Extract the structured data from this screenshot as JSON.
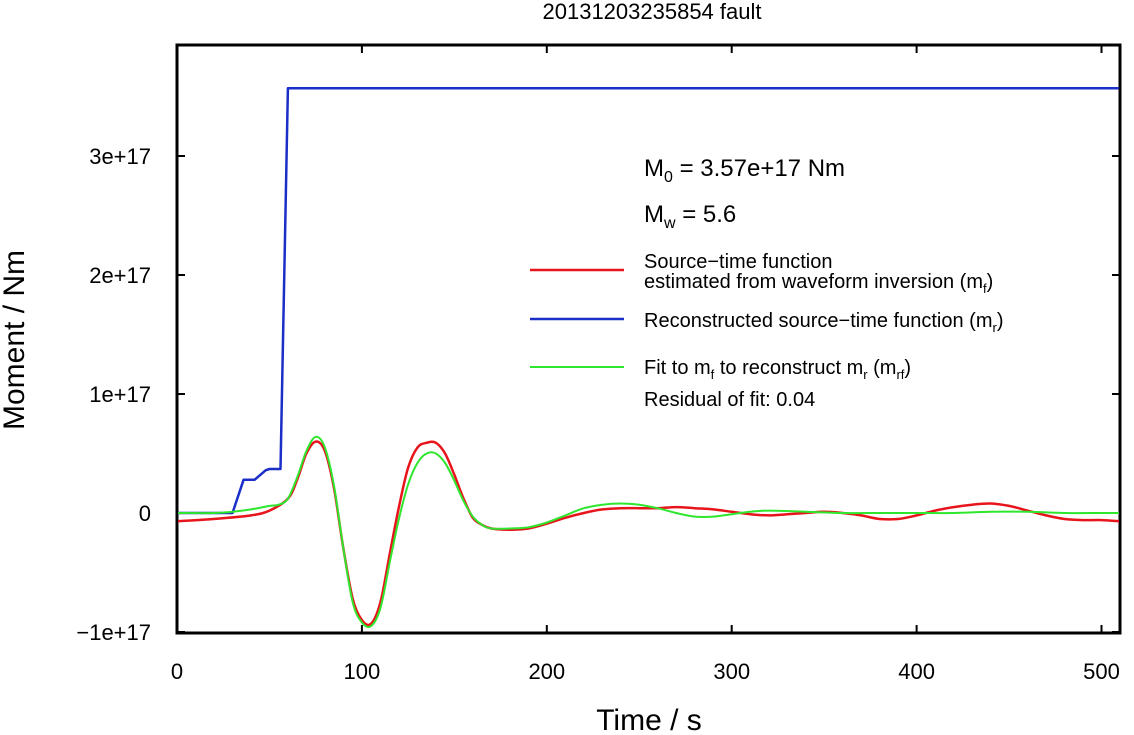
{
  "chart_data": {
    "type": "line",
    "title": "20131203235854 fault",
    "xlabel": "Time / s",
    "ylabel": "Moment / Nm",
    "xlim": [
      0,
      510
    ],
    "ylim": [
      -1e+17,
      3.9e+17
    ],
    "x_ticks": [
      0,
      100,
      200,
      300,
      400,
      500
    ],
    "x_tick_labels": [
      "0",
      "100",
      "200",
      "300",
      "400",
      "500"
    ],
    "y_ticks": [
      -1e+17,
      0,
      1e+17,
      2e+17,
      3e+17
    ],
    "y_tick_labels": [
      "−1e+17",
      "0",
      "1e+17",
      "2e+17",
      "3e+17"
    ],
    "grid": false,
    "annotations": {
      "m0": {
        "symbol": "M",
        "sub": "0",
        "text": " = 3.57e+17 Nm"
      },
      "mw": {
        "symbol": "M",
        "sub": "w",
        "text": " = 5.6"
      },
      "residual": "Residual of fit: 0.04"
    },
    "legend": {
      "placement": "right",
      "entries": [
        {
          "key": "red",
          "line1": "Source−time function",
          "line2": "estimated from waveform inversion (m",
          "sub": "f",
          "close": ")",
          "color": "#e8141c"
        },
        {
          "key": "blue",
          "line1": "Reconstructed source−time function (m",
          "sub": "r",
          "close": ")",
          "color": "#1a2ec8"
        },
        {
          "key": "green",
          "line1": "Fit to m",
          "sub1": "f",
          "mid": " to reconstruct m",
          "sub2": "r",
          "mid2": " (m",
          "sub3": "rf",
          "close": ")",
          "color": "#2ee62e"
        }
      ]
    },
    "series": [
      {
        "key": "red",
        "color": "#e8141c",
        "x": [
          0,
          20,
          40,
          50,
          60,
          65,
          70,
          75,
          80,
          85,
          90,
          95,
          100,
          105,
          110,
          115,
          120,
          125,
          130,
          135,
          140,
          145,
          150,
          155,
          160,
          165,
          170,
          180,
          190,
          200,
          210,
          220,
          230,
          240,
          250,
          260,
          270,
          280,
          290,
          300,
          310,
          320,
          330,
          340,
          350,
          360,
          370,
          380,
          390,
          400,
          410,
          420,
          430,
          440,
          450,
          460,
          470,
          480,
          490,
          500,
          510
        ],
        "y": [
          -7000000000000000.0,
          -5000000000000000.0,
          -2000000000000000.0,
          2000000000000000.0,
          1.2e+16,
          2.8e+16,
          5e+16,
          6e+16,
          5.2e+16,
          2e+16,
          -3e+16,
          -7.2e+16,
          -9e+16,
          -9.3e+16,
          -7.5e+16,
          -3.5e+16,
          5000000000000000.0,
          3.8e+16,
          5.5e+16,
          5.9e+16,
          5.9e+16,
          5e+16,
          3.2e+16,
          1.2e+16,
          -4000000000000000.0,
          -1e+16,
          -1.3e+16,
          -1.4e+16,
          -1.3e+16,
          -9000000000000000.0,
          -4000000000000000.0,
          0.0,
          3000000000000000.0,
          4000000000000000.0,
          4000000000000000.0,
          4000000000000000.0,
          5000000000000000.0,
          4000000000000000.0,
          3000000000000000.0,
          1000000000000000.0,
          -1000000000000000.0,
          -2000000000000000.0,
          -1000000000000000.0,
          0.0,
          1000000000000000.0,
          0.0,
          -2000000000000000.0,
          -5000000000000000.0,
          -5000000000000000.0,
          -2000000000000000.0,
          2000000000000000.0,
          5000000000000000.0,
          7000000000000000.0,
          8000000000000000.0,
          6000000000000000.0,
          2000000000000000.0,
          -2000000000000000.0,
          -5000000000000000.0,
          -6000000000000000.0,
          -6000000000000000.0,
          -7000000000000000.0
        ]
      },
      {
        "key": "blue",
        "color": "#1a2ec8",
        "x": [
          0,
          30,
          36,
          40,
          42,
          48,
          50,
          55,
          56,
          60,
          510
        ],
        "y": [
          0,
          0,
          2.8e+16,
          2.8e+16,
          2.8e+16,
          3.6e+16,
          3.7e+16,
          3.7e+16,
          3.7e+16,
          3.57e+17,
          3.57e+17
        ]
      },
      {
        "key": "green",
        "color": "#2ee62e",
        "x": [
          0,
          20,
          30,
          40,
          50,
          55,
          60,
          65,
          70,
          75,
          80,
          85,
          90,
          95,
          100,
          105,
          110,
          115,
          120,
          125,
          130,
          135,
          140,
          145,
          150,
          155,
          160,
          165,
          170,
          180,
          190,
          200,
          210,
          220,
          230,
          240,
          250,
          260,
          270,
          280,
          290,
          300,
          310,
          320,
          340,
          360,
          380,
          400,
          420,
          440,
          460,
          480,
          500,
          510
        ],
        "y": [
          0,
          0,
          1000000000000000.0,
          3000000000000000.0,
          6000000000000000.0,
          7000000000000000.0,
          1.2e+16,
          3e+16,
          5.2e+16,
          6.4e+16,
          5.5e+16,
          2.2e+16,
          -3e+16,
          -7.5e+16,
          -9.2e+16,
          -9.5e+16,
          -8e+16,
          -4.2e+16,
          -5000000000000000.0,
          2.4e+16,
          4.2e+16,
          5e+16,
          5e+16,
          4.2e+16,
          2.7e+16,
          1e+16,
          -3000000000000000.0,
          -1e+16,
          -1.3e+16,
          -1.3e+16,
          -1.2e+16,
          -8000000000000000.0,
          -2000000000000000.0,
          4000000000000000.0,
          7000000000000000.0,
          8000000000000000.0,
          7000000000000000.0,
          4000000000000000.0,
          0.0,
          -3000000000000000.0,
          -3000000000000000.0,
          -1000000000000000.0,
          1000000000000000.0,
          2000000000000000.0,
          1000000000000000.0,
          0.0,
          0.0,
          0.0,
          0.0,
          1000000000000000.0,
          1000000000000000.0,
          0.0,
          0.0,
          0.0
        ]
      }
    ]
  }
}
